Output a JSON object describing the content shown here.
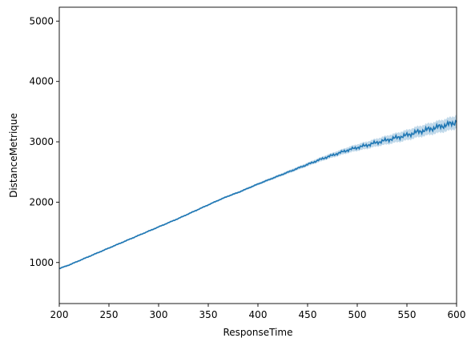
{
  "chart_data": {
    "type": "line",
    "title": "",
    "xlabel": "ResponseTime",
    "ylabel": "DistanceMetrique",
    "xlim": [
      200,
      600
    ],
    "ylim": [
      320,
      5230
    ],
    "xticks": [
      200,
      250,
      300,
      350,
      400,
      450,
      500,
      550,
      600
    ],
    "yticks": [
      1000,
      2000,
      3000,
      4000,
      5000
    ],
    "grid": false,
    "legend": "none",
    "series": [
      {
        "color": "#1f77b4",
        "band_color": "#1f77b4",
        "x": [
          200,
          210,
          220,
          230,
          240,
          250,
          260,
          270,
          280,
          290,
          300,
          310,
          320,
          330,
          340,
          350,
          360,
          370,
          380,
          390,
          400,
          410,
          420,
          430,
          440,
          450,
          460,
          470,
          480,
          490,
          500,
          510,
          520,
          530,
          540,
          550,
          560,
          570,
          580,
          590,
          600
        ],
        "y": [
          900,
          960,
          1030,
          1100,
          1170,
          1240,
          1310,
          1380,
          1450,
          1520,
          1590,
          1660,
          1730,
          1805,
          1880,
          1955,
          2030,
          2100,
          2160,
          2230,
          2300,
          2365,
          2430,
          2495,
          2560,
          2625,
          2690,
          2750,
          2805,
          2860,
          2905,
          2945,
          2990,
          3030,
          3070,
          3110,
          3160,
          3200,
          3240,
          3280,
          3330
        ],
        "lower": [
          885,
          945,
          1015,
          1085,
          1155,
          1225,
          1295,
          1365,
          1435,
          1505,
          1575,
          1645,
          1715,
          1790,
          1865,
          1940,
          2014,
          2083,
          2142,
          2211,
          2280,
          2343,
          2406,
          2469,
          2532,
          2595,
          2656,
          2712,
          2762,
          2812,
          2850,
          2885,
          2925,
          2958,
          2992,
          3025,
          3070,
          3105,
          3140,
          3175,
          3220
        ],
        "upper": [
          915,
          975,
          1045,
          1115,
          1185,
          1255,
          1325,
          1395,
          1465,
          1535,
          1605,
          1675,
          1745,
          1820,
          1895,
          1970,
          2046,
          2117,
          2178,
          2249,
          2320,
          2387,
          2454,
          2521,
          2588,
          2655,
          2724,
          2788,
          2848,
          2908,
          2960,
          3005,
          3055,
          3102,
          3148,
          3195,
          3250,
          3295,
          3340,
          3385,
          3440
        ]
      }
    ]
  }
}
